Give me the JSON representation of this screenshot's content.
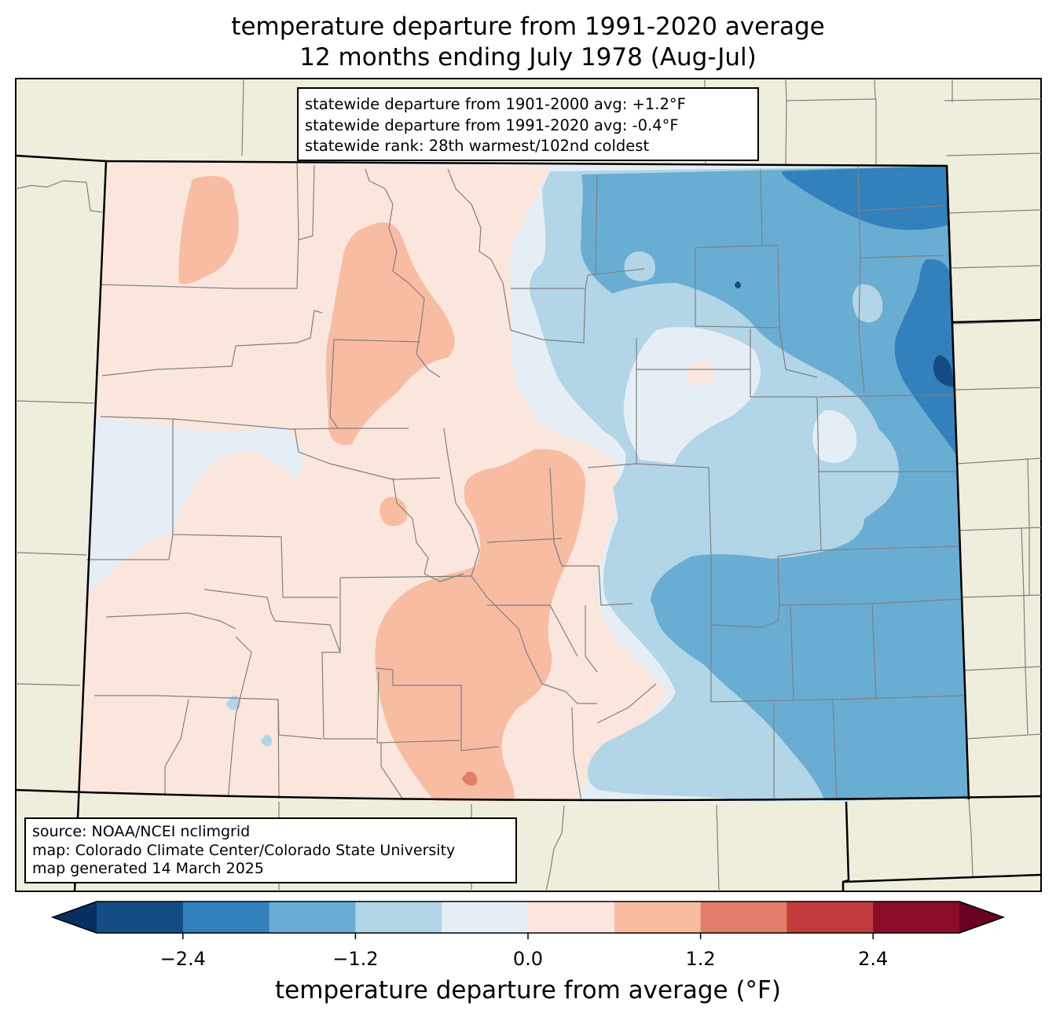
{
  "title": {
    "line1": "temperature departure from 1991-2020 average",
    "line2": "12 months ending July 1978 (Aug-Jul)"
  },
  "stats": {
    "line1": "statewide departure from 1901-2000 avg: +1.2°F",
    "line2": "statewide departure from 1991-2020 avg: -0.4°F",
    "line3": "statewide rank: 28th warmest/102nd coldest"
  },
  "source": {
    "line1": "source: NOAA/NCEI nclimgrid",
    "line2": "map: Colorado Climate Center/Colorado State University",
    "line3": "map generated 14 March 2025"
  },
  "colorbar": {
    "label": "temperature departure from average (°F)",
    "ticks": [
      "−2.4",
      "−1.2",
      "0.0",
      "1.2",
      "2.4"
    ],
    "tick_values": [
      -2.4,
      -1.2,
      0.0,
      1.2,
      2.4
    ],
    "range": [
      -3.0,
      3.0
    ],
    "levels": [
      -3.0,
      -2.4,
      -1.8,
      -1.2,
      -0.6,
      0.0,
      0.6,
      1.2,
      1.8,
      2.4,
      3.0
    ],
    "colors": [
      "#154c85",
      "#3280bc",
      "#6aadd3",
      "#b2d5e7",
      "#e6eef5",
      "#fae6dd",
      "#f8bca2",
      "#e07e69",
      "#c13b3d",
      "#8a0c27"
    ],
    "under_color": "#07305f",
    "over_color": "#6a0020"
  },
  "map_colors": {
    "background": "#efeedc",
    "state_border": "#000000",
    "county_border": "#808080"
  }
}
